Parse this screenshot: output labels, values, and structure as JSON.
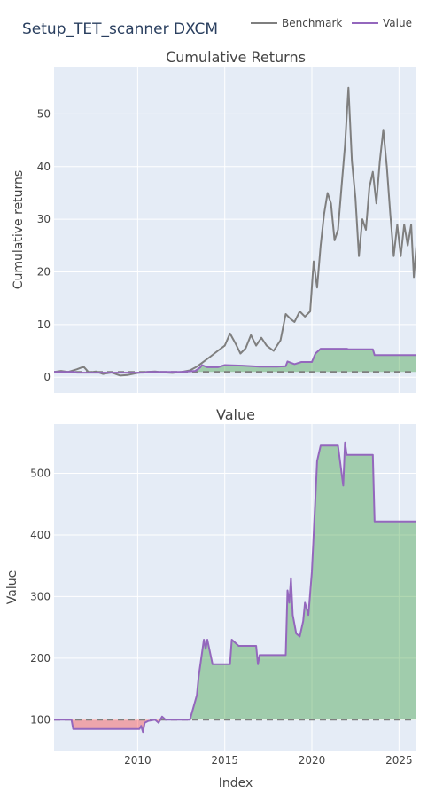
{
  "title": "Setup_TET_scanner DXCM",
  "legend": {
    "items": [
      {
        "name": "Benchmark",
        "color": "#7f7f7f"
      },
      {
        "name": "Value",
        "color": "#9467bd"
      }
    ]
  },
  "chart_data": [
    {
      "type": "line",
      "title": "Cumulative Returns",
      "xlabel": "",
      "ylabel": "Cumulative returns",
      "xlim": [
        2005.2,
        2026.0
      ],
      "ylim": [
        -3,
        59
      ],
      "yticks": [
        0,
        10,
        20,
        30,
        40,
        50
      ],
      "baseline": 1,
      "series": [
        {
          "name": "Benchmark",
          "color": "#7f7f7f",
          "x": [
            2005.2,
            2005.6,
            2006.0,
            2006.5,
            2006.9,
            2007.2,
            2007.6,
            2008.0,
            2008.5,
            2009.0,
            2009.4,
            2010.0,
            2010.5,
            2011.0,
            2011.5,
            2012.0,
            2012.5,
            2013.0,
            2013.4,
            2013.8,
            2014.2,
            2014.6,
            2015.0,
            2015.3,
            2015.6,
            2015.9,
            2016.2,
            2016.5,
            2016.8,
            2017.1,
            2017.4,
            2017.8,
            2018.2,
            2018.5,
            2018.8,
            2019.0,
            2019.3,
            2019.6,
            2019.9,
            2020.1,
            2020.3,
            2020.5,
            2020.7,
            2020.9,
            2021.1,
            2021.3,
            2021.5,
            2021.7,
            2021.9,
            2022.1,
            2022.3,
            2022.5,
            2022.7,
            2022.9,
            2023.1,
            2023.3,
            2023.5,
            2023.7,
            2023.9,
            2024.1,
            2024.3,
            2024.5,
            2024.7,
            2024.9,
            2025.1,
            2025.3,
            2025.5,
            2025.7,
            2025.85,
            2026.0
          ],
          "y": [
            1.0,
            1.2,
            1.0,
            1.5,
            2.0,
            0.9,
            1.1,
            0.6,
            0.9,
            0.3,
            0.4,
            0.8,
            1.0,
            1.1,
            0.9,
            0.8,
            1.0,
            1.3,
            2.0,
            3.0,
            4.0,
            5.0,
            6.0,
            8.3,
            6.5,
            4.5,
            5.5,
            8.0,
            6.0,
            7.5,
            6.0,
            5.0,
            7.0,
            12.0,
            11.0,
            10.5,
            12.5,
            11.5,
            12.5,
            22.0,
            17.0,
            25.0,
            31.0,
            35.0,
            33.0,
            26.0,
            28.0,
            36.0,
            44.0,
            55.0,
            41.0,
            34.0,
            23.0,
            30.0,
            28.0,
            36.0,
            39.0,
            33.0,
            41.0,
            47.0,
            40.0,
            31.0,
            23.0,
            29.0,
            23.0,
            29.0,
            25.0,
            29.0,
            19.0,
            25.0
          ]
        },
        {
          "name": "Value",
          "color": "#9467bd",
          "x": [
            2005.2,
            2006.4,
            2006.5,
            2010.3,
            2010.6,
            2012.5,
            2013.3,
            2013.4,
            2013.6,
            2013.7,
            2014.0,
            2014.6,
            2015.0,
            2016.0,
            2017.0,
            2018.0,
            2018.5,
            2018.6,
            2019.0,
            2019.4,
            2020.0,
            2020.2,
            2020.5,
            2021.0,
            2022.0,
            2022.1,
            2023.5,
            2023.6,
            2026.0
          ],
          "y": [
            1.0,
            1.0,
            0.85,
            0.85,
            1.0,
            1.0,
            1.2,
            1.4,
            1.9,
            2.3,
            1.9,
            1.9,
            2.3,
            2.2,
            2.0,
            2.0,
            2.1,
            3.0,
            2.5,
            2.9,
            2.9,
            4.5,
            5.4,
            5.4,
            5.4,
            5.3,
            5.3,
            4.2,
            4.2
          ]
        }
      ]
    },
    {
      "type": "line",
      "title": "Value",
      "xlabel": "Index",
      "ylabel": "Value",
      "xlim": [
        2005.2,
        2026.0
      ],
      "ylim": [
        50,
        580
      ],
      "yticks": [
        100,
        200,
        300,
        400,
        500
      ],
      "xticks": [
        2010,
        2015,
        2020,
        2025
      ],
      "baseline": 100,
      "series": [
        {
          "name": "Value",
          "color": "#9467bd",
          "x": [
            2005.2,
            2006.2,
            2006.3,
            2008.5,
            2008.8,
            2009.2,
            2009.5,
            2010.1,
            2010.2,
            2010.3,
            2010.4,
            2010.6,
            2011.0,
            2011.2,
            2011.4,
            2011.6,
            2012.8,
            2013.0,
            2013.4,
            2013.5,
            2013.6,
            2013.8,
            2013.9,
            2014.0,
            2014.3,
            2014.4,
            2014.6,
            2015.0,
            2015.3,
            2015.4,
            2015.6,
            2015.8,
            2016.0,
            2016.8,
            2016.9,
            2017.0,
            2017.5,
            2018.5,
            2018.6,
            2018.7,
            2018.8,
            2018.9,
            2019.1,
            2019.3,
            2019.5,
            2019.6,
            2019.8,
            2020.0,
            2020.2,
            2020.3,
            2020.5,
            2021.0,
            2021.5,
            2021.8,
            2021.9,
            2022.0,
            2022.2,
            2023.0,
            2023.5,
            2023.6,
            2026.0
          ],
          "y": [
            100,
            100,
            85,
            85,
            85,
            85,
            85,
            85,
            90,
            80,
            95,
            98,
            100,
            95,
            105,
            100,
            100,
            100,
            140,
            170,
            190,
            230,
            215,
            230,
            190,
            190,
            190,
            190,
            190,
            230,
            225,
            220,
            220,
            220,
            190,
            205,
            205,
            205,
            310,
            290,
            330,
            270,
            240,
            235,
            260,
            290,
            270,
            340,
            460,
            520,
            545,
            545,
            545,
            480,
            550,
            530,
            530,
            530,
            530,
            422,
            422
          ]
        }
      ]
    }
  ]
}
